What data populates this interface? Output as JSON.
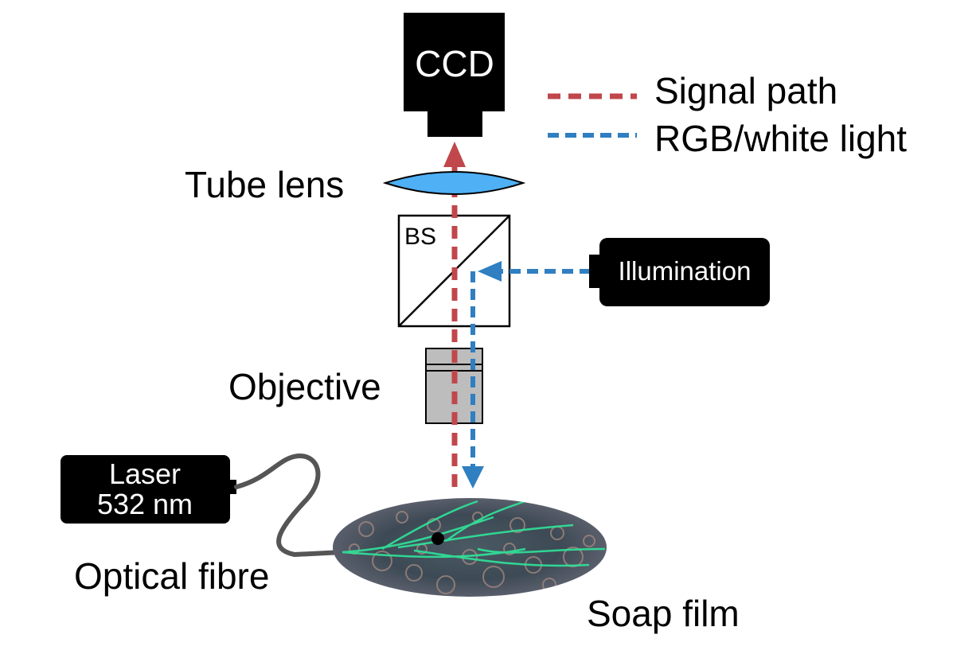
{
  "labels": {
    "ccd": "CCD",
    "tube_lens": "Tube lens",
    "bs": "BS",
    "illumination": "Illumination",
    "objective": "Objective",
    "laser_line1": "Laser",
    "laser_line2": "532 nm",
    "optical_fibre": "Optical fibre",
    "soap_film": "Soap film"
  },
  "legend": {
    "signal_path": "Signal path",
    "rgb_light": "RGB/white light"
  },
  "colors": {
    "signal": "#c0474b",
    "rgb": "#2f7fc1",
    "lens_fill": "#4fb0f5",
    "objective_fill": "#bdbdbd",
    "device": "#000000",
    "fibre": "#555555"
  }
}
